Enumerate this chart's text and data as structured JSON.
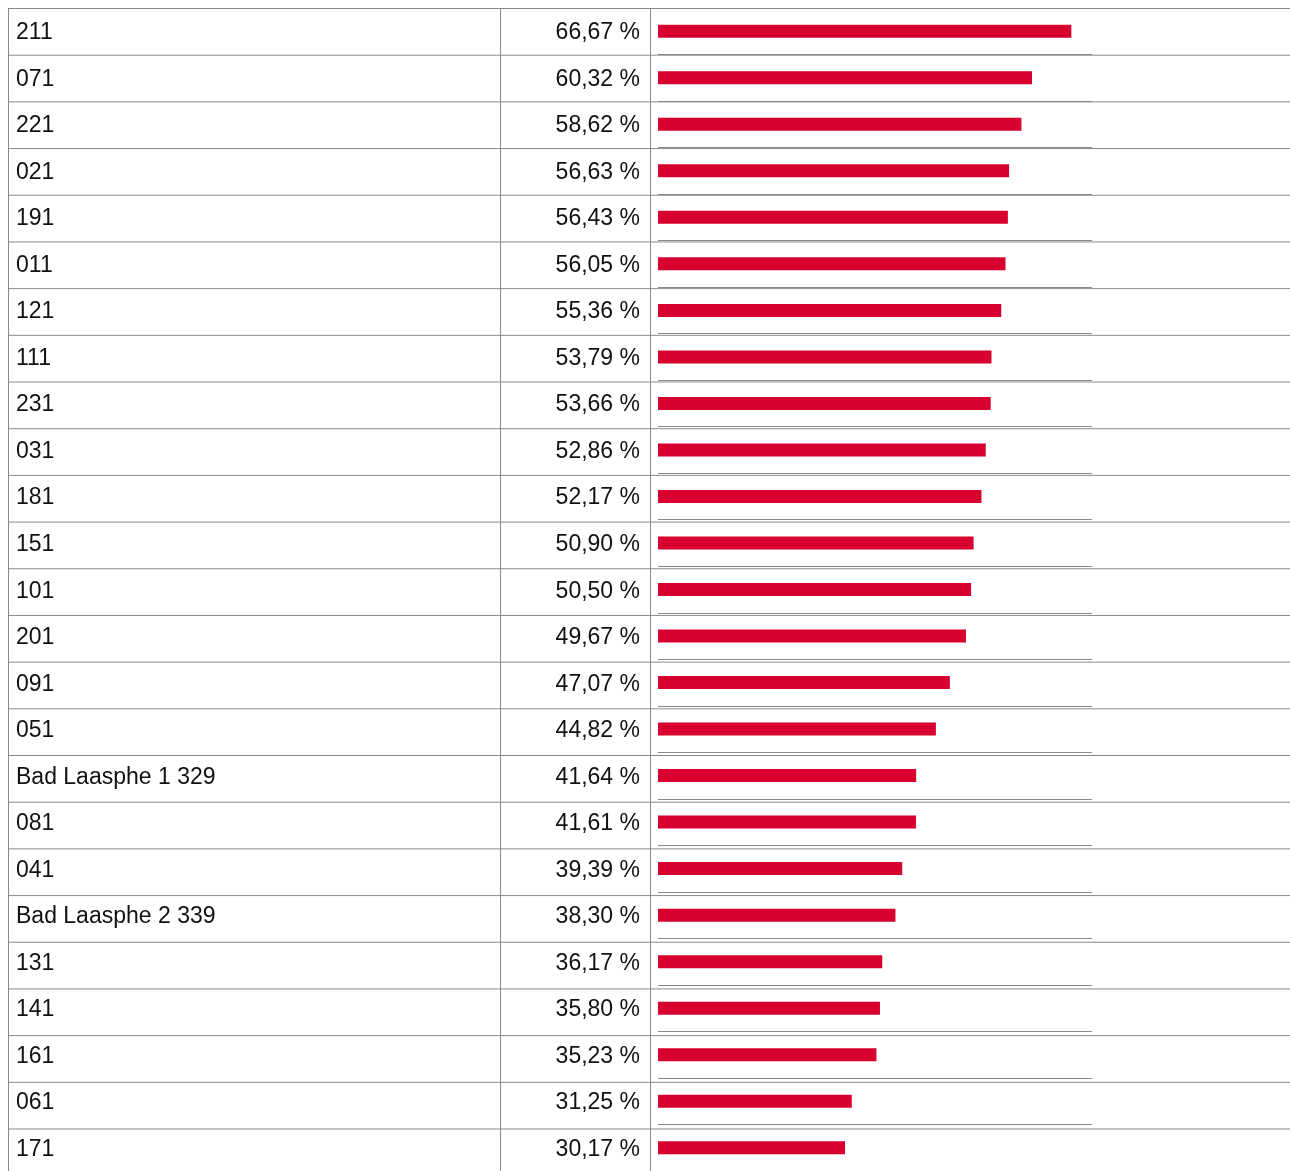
{
  "chart_data": {
    "type": "bar",
    "orientation": "horizontal",
    "categories": [
      "211",
      "071",
      "221",
      "021",
      "191",
      "011",
      "121",
      "111",
      "231",
      "031",
      "181",
      "151",
      "101",
      "201",
      "091",
      "051",
      "Bad Laasphe 1 329",
      "081",
      "041",
      "Bad Laasphe 2 339",
      "131",
      "141",
      "161",
      "061",
      "171"
    ],
    "values": [
      66.67,
      60.32,
      58.62,
      56.63,
      56.43,
      56.05,
      55.36,
      53.79,
      53.66,
      52.86,
      52.17,
      50.9,
      50.5,
      49.67,
      47.07,
      44.82,
      41.64,
      41.61,
      39.39,
      38.3,
      36.17,
      35.8,
      35.23,
      31.25,
      30.17
    ],
    "value_labels": [
      "66,67 %",
      "60,32 %",
      "58,62 %",
      "56,63 %",
      "56,43 %",
      "56,05 %",
      "55,36 %",
      "53,79 %",
      "53,66 %",
      "52,86 %",
      "52,17 %",
      "50,90 %",
      "50,50 %",
      "49,67 %",
      "47,07 %",
      "44,82 %",
      "41,64 %",
      "41,61 %",
      "39,39 %",
      "38,30 %",
      "36,17 %",
      "35,80 %",
      "35,23 %",
      "31,25 %",
      "30,17 %"
    ],
    "color": "#d7002e",
    "tick_labels": "y",
    "grid": "y"
  }
}
